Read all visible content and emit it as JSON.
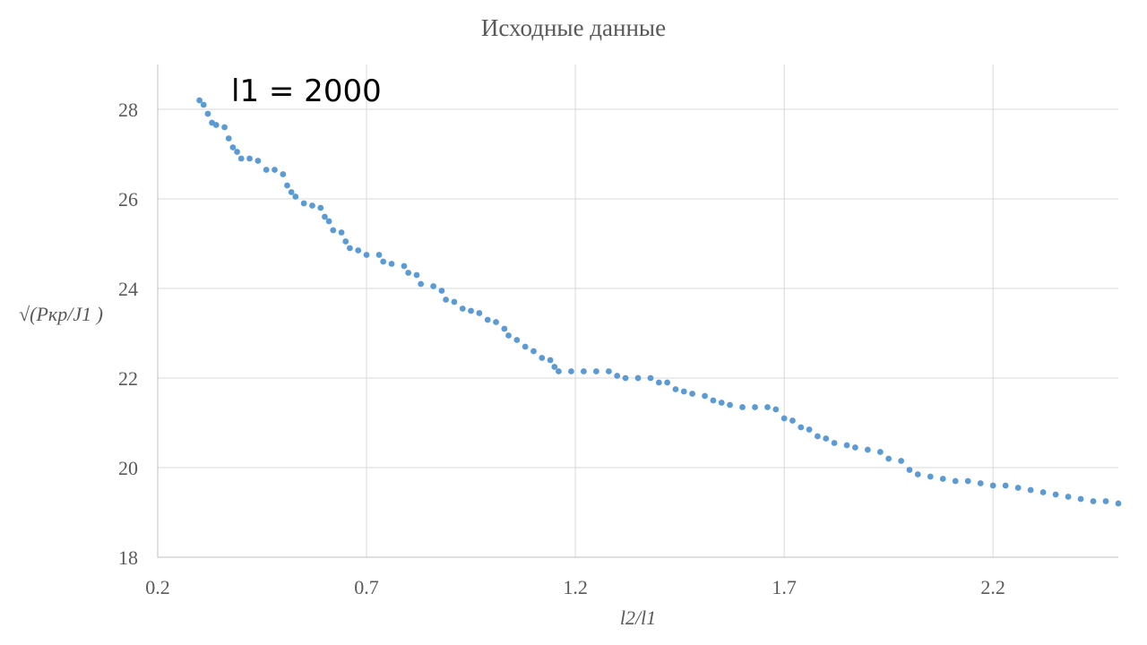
{
  "chart_data": {
    "type": "scatter",
    "title": "Исходные данные",
    "xlabel": "l2/l1",
    "ylabel": "√(Pкр/J1 )",
    "annotation": "l1 = 2000",
    "xlim": [
      0.2,
      2.5
    ],
    "ylim": [
      18,
      29
    ],
    "xticks": [
      0.2,
      0.7,
      1.2,
      1.7,
      2.2
    ],
    "xtick_labels": [
      "0.2",
      "0.7",
      "1.2",
      "1.7",
      "2.2"
    ],
    "yticks": [
      18,
      20,
      22,
      24,
      26,
      28
    ],
    "ytick_labels": [
      "18",
      "20",
      "22",
      "24",
      "26",
      "28"
    ],
    "grid": true,
    "color": "#5b9bd5",
    "series": [
      {
        "points": [
          [
            0.3,
            28.2
          ],
          [
            0.31,
            28.1
          ],
          [
            0.32,
            27.9
          ],
          [
            0.33,
            27.7
          ],
          [
            0.34,
            27.65
          ],
          [
            0.36,
            27.6
          ],
          [
            0.37,
            27.35
          ],
          [
            0.38,
            27.15
          ],
          [
            0.39,
            27.05
          ],
          [
            0.4,
            26.9
          ],
          [
            0.42,
            26.9
          ],
          [
            0.44,
            26.85
          ],
          [
            0.46,
            26.65
          ],
          [
            0.48,
            26.65
          ],
          [
            0.5,
            26.55
          ],
          [
            0.51,
            26.3
          ],
          [
            0.52,
            26.15
          ],
          [
            0.53,
            26.05
          ],
          [
            0.55,
            25.9
          ],
          [
            0.57,
            25.85
          ],
          [
            0.59,
            25.8
          ],
          [
            0.6,
            25.6
          ],
          [
            0.61,
            25.5
          ],
          [
            0.62,
            25.3
          ],
          [
            0.64,
            25.25
          ],
          [
            0.65,
            25.05
          ],
          [
            0.66,
            24.9
          ],
          [
            0.68,
            24.85
          ],
          [
            0.7,
            24.75
          ],
          [
            0.73,
            24.75
          ],
          [
            0.74,
            24.6
          ],
          [
            0.76,
            24.55
          ],
          [
            0.79,
            24.5
          ],
          [
            0.8,
            24.35
          ],
          [
            0.82,
            24.3
          ],
          [
            0.83,
            24.1
          ],
          [
            0.86,
            24.05
          ],
          [
            0.88,
            23.95
          ],
          [
            0.89,
            23.75
          ],
          [
            0.91,
            23.7
          ],
          [
            0.93,
            23.55
          ],
          [
            0.95,
            23.5
          ],
          [
            0.97,
            23.45
          ],
          [
            0.99,
            23.3
          ],
          [
            1.01,
            23.25
          ],
          [
            1.03,
            23.1
          ],
          [
            1.04,
            22.95
          ],
          [
            1.06,
            22.85
          ],
          [
            1.08,
            22.7
          ],
          [
            1.1,
            22.6
          ],
          [
            1.12,
            22.45
          ],
          [
            1.14,
            22.4
          ],
          [
            1.15,
            22.25
          ],
          [
            1.16,
            22.15
          ],
          [
            1.19,
            22.15
          ],
          [
            1.22,
            22.15
          ],
          [
            1.25,
            22.15
          ],
          [
            1.28,
            22.15
          ],
          [
            1.3,
            22.05
          ],
          [
            1.32,
            22.0
          ],
          [
            1.35,
            22.0
          ],
          [
            1.38,
            22.0
          ],
          [
            1.4,
            21.9
          ],
          [
            1.42,
            21.9
          ],
          [
            1.44,
            21.75
          ],
          [
            1.46,
            21.7
          ],
          [
            1.48,
            21.65
          ],
          [
            1.51,
            21.6
          ],
          [
            1.53,
            21.5
          ],
          [
            1.55,
            21.45
          ],
          [
            1.57,
            21.4
          ],
          [
            1.6,
            21.35
          ],
          [
            1.63,
            21.35
          ],
          [
            1.66,
            21.35
          ],
          [
            1.68,
            21.3
          ],
          [
            1.7,
            21.1
          ],
          [
            1.72,
            21.05
          ],
          [
            1.74,
            20.9
          ],
          [
            1.76,
            20.85
          ],
          [
            1.78,
            20.7
          ],
          [
            1.8,
            20.65
          ],
          [
            1.82,
            20.55
          ],
          [
            1.85,
            20.5
          ],
          [
            1.87,
            20.45
          ],
          [
            1.9,
            20.4
          ],
          [
            1.93,
            20.35
          ],
          [
            1.95,
            20.2
          ],
          [
            1.98,
            20.15
          ],
          [
            2.0,
            19.95
          ],
          [
            2.02,
            19.85
          ],
          [
            2.05,
            19.8
          ],
          [
            2.08,
            19.75
          ],
          [
            2.11,
            19.7
          ],
          [
            2.14,
            19.7
          ],
          [
            2.17,
            19.65
          ],
          [
            2.2,
            19.6
          ],
          [
            2.23,
            19.6
          ],
          [
            2.26,
            19.55
          ],
          [
            2.29,
            19.5
          ],
          [
            2.32,
            19.45
          ],
          [
            2.35,
            19.4
          ],
          [
            2.38,
            19.35
          ],
          [
            2.41,
            19.3
          ],
          [
            2.44,
            19.25
          ],
          [
            2.47,
            19.25
          ],
          [
            2.5,
            19.2
          ]
        ]
      }
    ]
  }
}
